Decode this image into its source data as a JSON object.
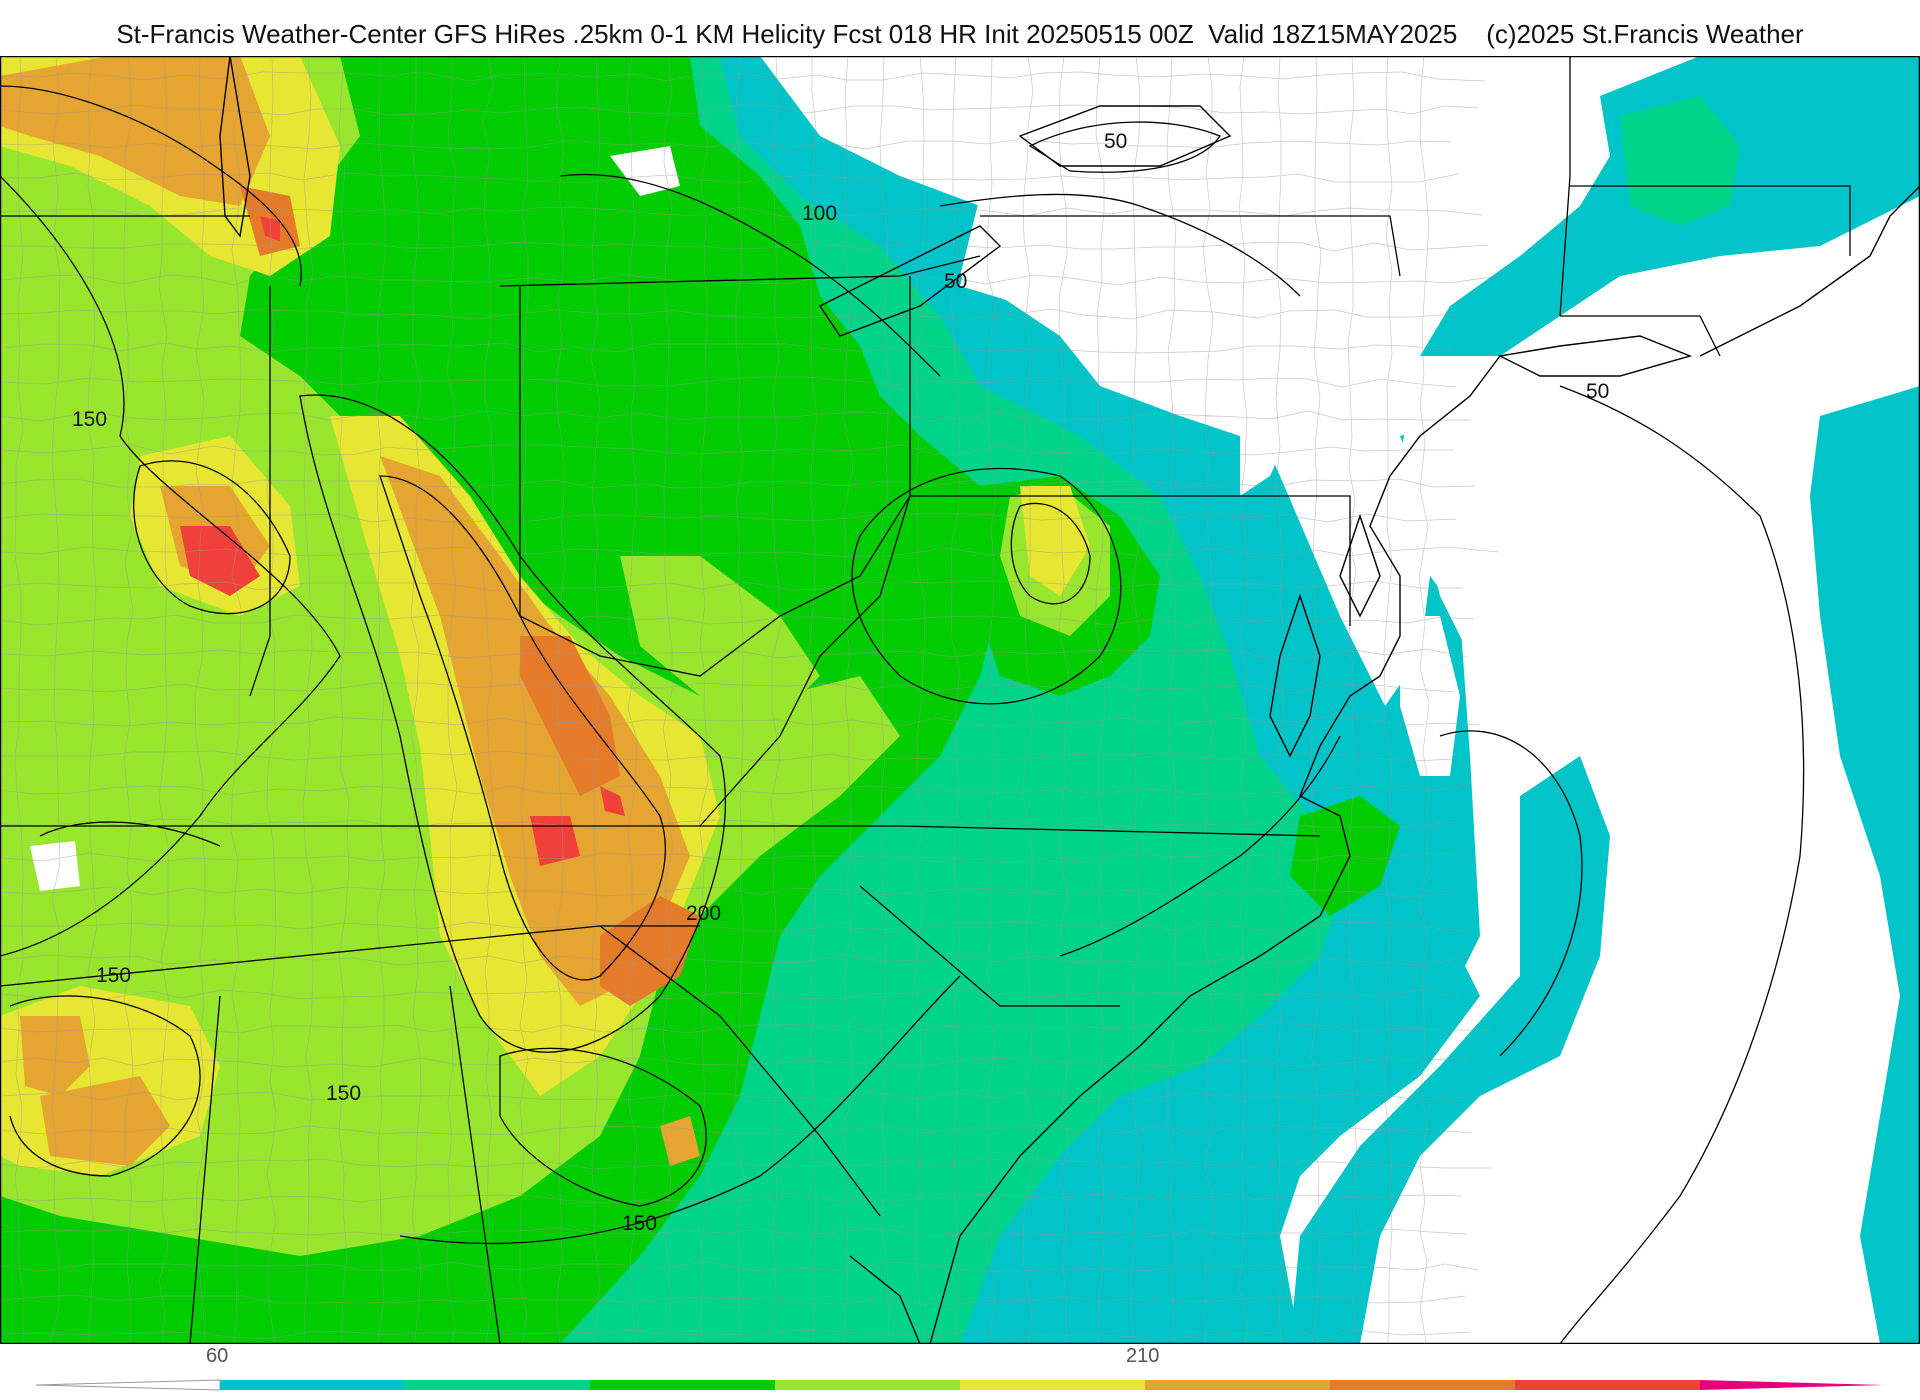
{
  "header": {
    "title": "St-Francis Weather-Center GFS HiRes .25km 0-1 KM Helicity Fcst 018 HR Init 20250515 00Z  Valid 18Z15MAY2025",
    "copyright": "(c)2025 St.Francis Weather"
  },
  "contour_labels": [
    "50",
    "50",
    "100",
    "150",
    "150",
    "150",
    "200",
    "150",
    "50"
  ],
  "colorbar": {
    "tick_labels": [
      "60",
      "210"
    ],
    "colors": [
      "#00c4c8",
      "#00d38a",
      "#00cc00",
      "#99e62e",
      "#e6e633",
      "#e6a531",
      "#e57a29",
      "#f0403a",
      "#e6007a"
    ]
  },
  "palette": {
    "ocean": "#ffffff",
    "land_none": "#ffffff",
    "contour_line": "#000000",
    "county_line": "#9a9a9a"
  }
}
